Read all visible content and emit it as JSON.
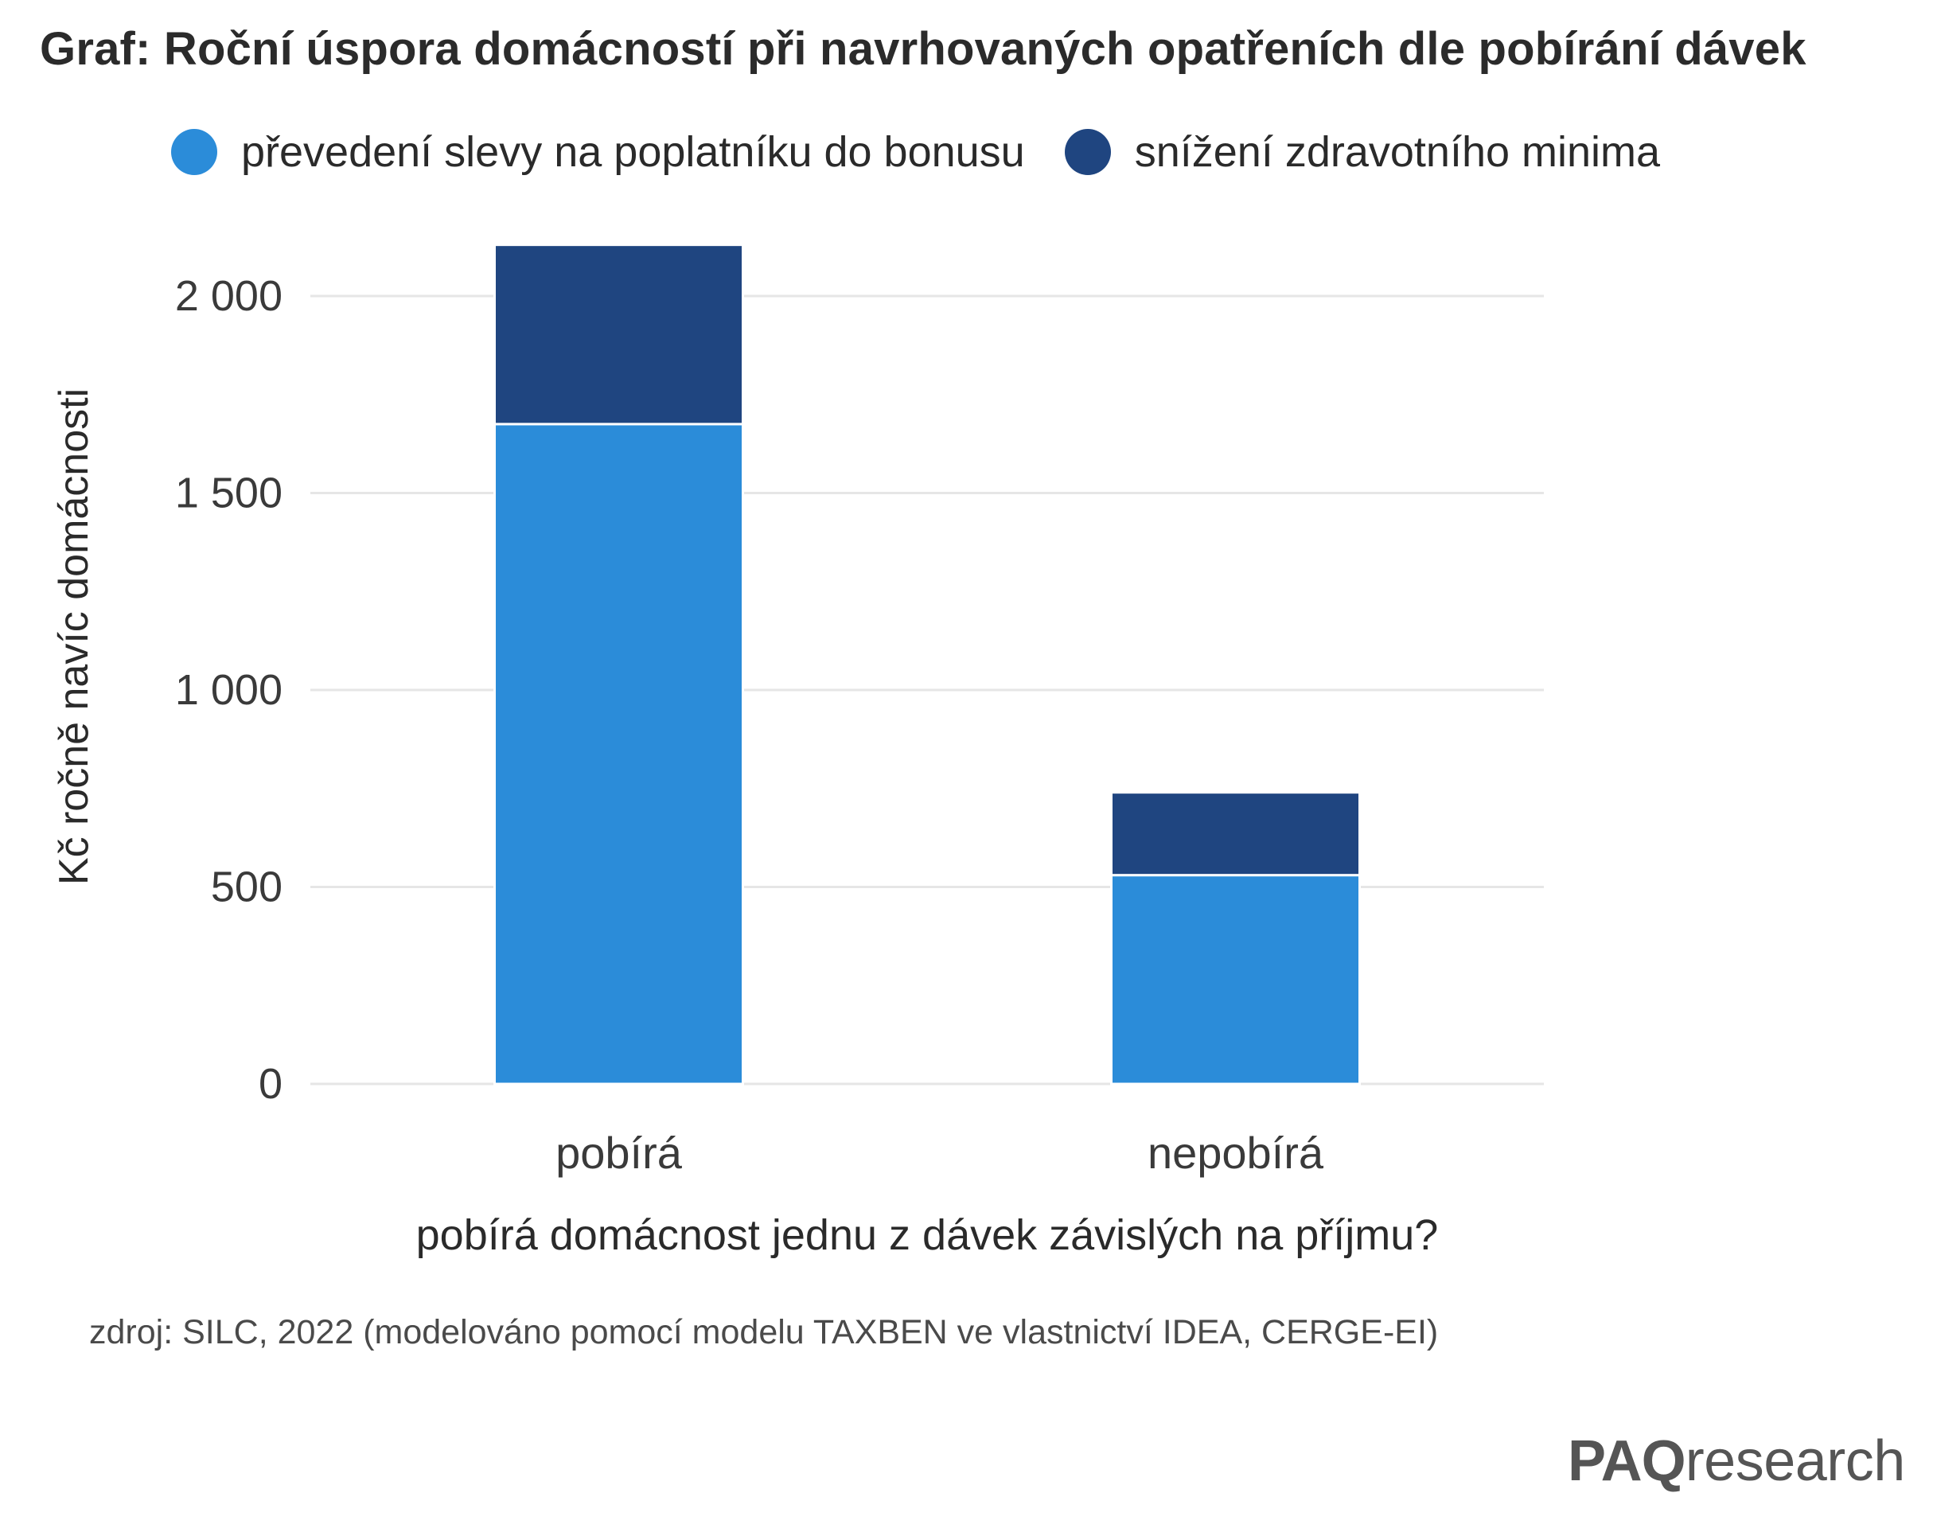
{
  "title": "Graf: Roční úspora domácností při navrhovaných opatřeních dle pobírání dávek",
  "legend": [
    {
      "label": "převedení slevy na poplatníku do bonusu",
      "color": "#2b8cd9"
    },
    {
      "label": "snížení zdravotního minima",
      "color": "#1f4580"
    }
  ],
  "source": "zdroj: SILC, 2022 (modelováno pomocí modelu TAXBEN ve vlastnictví IDEA, CERGE-EI)",
  "brand": {
    "bold": "PAQ",
    "light": "research"
  },
  "chart_data": {
    "type": "bar",
    "stacked": true,
    "categories": [
      "pobírá",
      "nepobírá"
    ],
    "series": [
      {
        "name": "převedení slevy na poplatníku do bonusu",
        "values": [
          1675,
          530
        ],
        "color": "#2b8cd9"
      },
      {
        "name": "snížení zdravotního minima",
        "values": [
          455,
          210
        ],
        "color": "#1f4580"
      }
    ],
    "xlabel": "pobírá domácnost jednu z dávek závislých na příjmu?",
    "ylabel": "Kč ročně navíc domácnosti",
    "ylim": [
      0,
      2000
    ],
    "yticks": [
      0,
      500,
      1000,
      1500,
      2000
    ],
    "ytick_labels": [
      "0",
      "500",
      "1 000",
      "1 500",
      "2 000"
    ],
    "grid": true,
    "legend_position": "top"
  }
}
